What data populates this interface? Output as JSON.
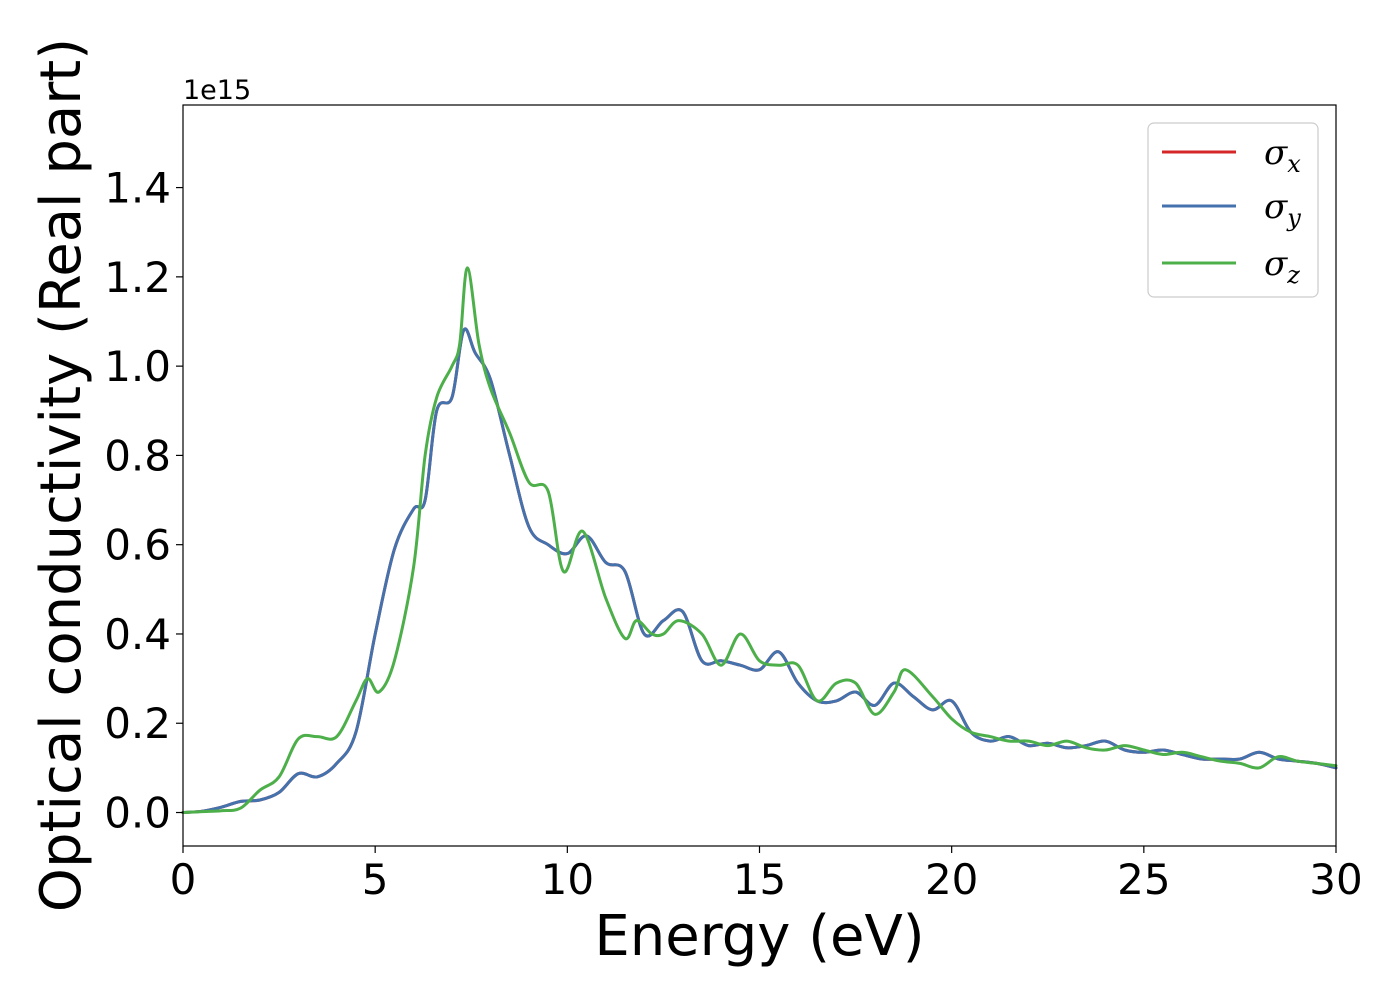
{
  "chart_data": {
    "type": "line",
    "title": "",
    "xlabel": "Energy (eV)",
    "ylabel": "Optical conductivity (Real part)",
    "y_offset_label": "1e15",
    "xlim": [
      0,
      30
    ],
    "ylim": [
      -0.075,
      1.585
    ],
    "x_ticks": [
      0,
      5,
      10,
      15,
      20,
      25,
      30
    ],
    "x_tick_labels": [
      "0",
      "5",
      "10",
      "15",
      "20",
      "25",
      "30"
    ],
    "y_ticks": [
      0.0,
      0.2,
      0.4,
      0.6,
      0.8,
      1.0,
      1.2,
      1.4
    ],
    "y_tick_labels": [
      "0.0",
      "0.2",
      "0.4",
      "0.6",
      "0.8",
      "1.0",
      "1.2",
      "1.4"
    ],
    "grid": false,
    "legend_position": "top-right",
    "series": [
      {
        "name": "σx",
        "symbol": "σ",
        "subscript": "x",
        "color": "#d62728",
        "x": [
          0,
          0.5,
          1,
          1.5,
          2,
          2.5,
          3,
          3.5,
          4,
          4.5,
          5,
          5.5,
          6,
          6.3,
          6.6,
          7,
          7.3,
          7.6,
          8,
          8.5,
          9,
          9.5,
          10,
          10.5,
          11,
          11.5,
          12,
          12.5,
          13,
          13.5,
          14,
          14.5,
          15,
          15.5,
          16,
          16.5,
          17,
          17.5,
          18,
          18.5,
          19,
          19.5,
          20,
          20.5,
          21,
          21.5,
          22,
          22.5,
          23,
          23.5,
          24,
          24.5,
          25,
          25.5,
          26,
          26.5,
          27,
          27.5,
          28,
          28.5,
          29,
          29.5,
          30
        ],
        "y": [
          0,
          0.003,
          0.012,
          0.025,
          0.028,
          0.045,
          0.087,
          0.08,
          0.11,
          0.18,
          0.4,
          0.59,
          0.68,
          0.7,
          0.9,
          0.93,
          1.08,
          1.03,
          0.97,
          0.8,
          0.64,
          0.6,
          0.58,
          0.62,
          0.56,
          0.54,
          0.4,
          0.43,
          0.45,
          0.34,
          0.34,
          0.33,
          0.32,
          0.36,
          0.29,
          0.25,
          0.25,
          0.27,
          0.24,
          0.29,
          0.26,
          0.23,
          0.25,
          0.18,
          0.16,
          0.17,
          0.15,
          0.155,
          0.145,
          0.15,
          0.16,
          0.14,
          0.135,
          0.14,
          0.13,
          0.12,
          0.12,
          0.12,
          0.135,
          0.12,
          0.115,
          0.11,
          0.1
        ]
      },
      {
        "name": "σy",
        "symbol": "σ",
        "subscript": "y",
        "color": "#4472ad",
        "x": [
          0,
          0.5,
          1,
          1.5,
          2,
          2.5,
          3,
          3.5,
          4,
          4.5,
          5,
          5.5,
          6,
          6.3,
          6.6,
          7,
          7.3,
          7.6,
          8,
          8.5,
          9,
          9.5,
          10,
          10.5,
          11,
          11.5,
          12,
          12.5,
          13,
          13.5,
          14,
          14.5,
          15,
          15.5,
          16,
          16.5,
          17,
          17.5,
          18,
          18.5,
          19,
          19.5,
          20,
          20.5,
          21,
          21.5,
          22,
          22.5,
          23,
          23.5,
          24,
          24.5,
          25,
          25.5,
          26,
          26.5,
          27,
          27.5,
          28,
          28.5,
          29,
          29.5,
          30
        ],
        "y": [
          0,
          0.003,
          0.012,
          0.025,
          0.028,
          0.045,
          0.087,
          0.08,
          0.11,
          0.18,
          0.4,
          0.59,
          0.68,
          0.7,
          0.9,
          0.93,
          1.08,
          1.03,
          0.97,
          0.8,
          0.64,
          0.6,
          0.58,
          0.62,
          0.56,
          0.54,
          0.4,
          0.43,
          0.45,
          0.34,
          0.34,
          0.33,
          0.32,
          0.36,
          0.29,
          0.25,
          0.25,
          0.27,
          0.24,
          0.29,
          0.26,
          0.23,
          0.25,
          0.18,
          0.16,
          0.17,
          0.15,
          0.155,
          0.145,
          0.15,
          0.16,
          0.14,
          0.135,
          0.14,
          0.13,
          0.12,
          0.12,
          0.12,
          0.135,
          0.12,
          0.115,
          0.11,
          0.1
        ]
      },
      {
        "name": "σz",
        "symbol": "σ",
        "subscript": "z",
        "color": "#4daf4a",
        "x": [
          0,
          0.5,
          1,
          1.5,
          2,
          2.5,
          3,
          3.5,
          4,
          4.5,
          4.8,
          5.1,
          5.5,
          6,
          6.3,
          6.6,
          7,
          7.2,
          7.4,
          7.7,
          8,
          8.5,
          9,
          9.5,
          9.9,
          10.4,
          11,
          11.5,
          11.8,
          12.2,
          12.5,
          12.9,
          13.5,
          14,
          14.5,
          15,
          15.5,
          16,
          16.5,
          17,
          17.5,
          18,
          18.5,
          18.8,
          19.5,
          20,
          20.5,
          21,
          21.5,
          22,
          22.5,
          23,
          23.5,
          24,
          24.5,
          25,
          25.5,
          26,
          26.5,
          27,
          27.5,
          28,
          28.5,
          29,
          29.5,
          30
        ],
        "y": [
          0,
          0.002,
          0.004,
          0.01,
          0.05,
          0.08,
          0.165,
          0.17,
          0.17,
          0.25,
          0.3,
          0.27,
          0.34,
          0.55,
          0.8,
          0.93,
          1.0,
          1.05,
          1.22,
          1.05,
          0.95,
          0.85,
          0.74,
          0.72,
          0.54,
          0.63,
          0.48,
          0.39,
          0.43,
          0.4,
          0.4,
          0.43,
          0.4,
          0.33,
          0.4,
          0.34,
          0.33,
          0.33,
          0.25,
          0.29,
          0.29,
          0.22,
          0.27,
          0.32,
          0.26,
          0.21,
          0.18,
          0.17,
          0.16,
          0.16,
          0.15,
          0.16,
          0.145,
          0.14,
          0.15,
          0.14,
          0.13,
          0.135,
          0.125,
          0.115,
          0.11,
          0.1,
          0.125,
          0.115,
          0.11,
          0.105
        ]
      }
    ]
  }
}
